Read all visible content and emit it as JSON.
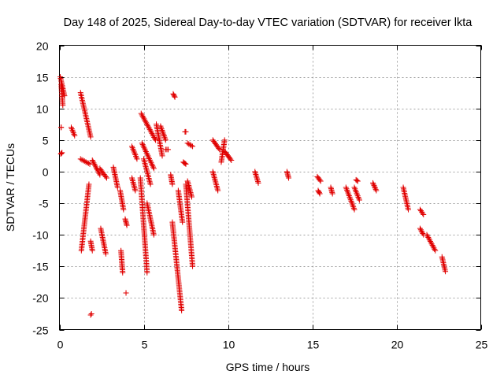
{
  "chart_data": {
    "type": "scatter",
    "title": "Day 148 of 2025, Sidereal Day-to-day VTEC variation (SDTVAR) for receiver lkta",
    "xlabel": "GPS time / hours",
    "ylabel": "SDTVAR / TECUs",
    "xlim": [
      0,
      25
    ],
    "ylim": [
      -25,
      20
    ],
    "xticks": [
      0,
      5,
      10,
      15,
      20,
      25
    ],
    "yticks": [
      -25,
      -20,
      -15,
      -10,
      -5,
      0,
      5,
      10,
      15,
      20
    ],
    "grid": true,
    "marker": "+",
    "color": "#e00000",
    "series": [
      {
        "name": "SDTVAR",
        "segments": [
          {
            "x": [
              0.05,
              0.3
            ],
            "y": [
              15,
              12
            ]
          },
          {
            "x": [
              0.1,
              0.2
            ],
            "y": [
              13.8,
              10.5
            ]
          },
          {
            "x": [
              0.08,
              0.15
            ],
            "y": [
              2.8,
              3.0
            ]
          },
          {
            "x": [
              0.1,
              0.1
            ],
            "y": [
              7,
              7
            ]
          },
          {
            "x": [
              0.7,
              0.9
            ],
            "y": [
              7,
              5.7
            ]
          },
          {
            "x": [
              1.25,
              1.85
            ],
            "y": [
              12.5,
              5.5
            ]
          },
          {
            "x": [
              1.25,
              1.8
            ],
            "y": [
              2,
              1.2
            ]
          },
          {
            "x": [
              1.3,
              1.75
            ],
            "y": [
              -12.5,
              -2
            ]
          },
          {
            "x": [
              1.85,
              1.95
            ],
            "y": [
              -11,
              -12.5
            ]
          },
          {
            "x": [
              1.85,
              1.9
            ],
            "y": [
              -22.7,
              -22.5
            ]
          },
          {
            "x": [
              1.95,
              2.4
            ],
            "y": [
              1.8,
              -0.5
            ]
          },
          {
            "x": [
              2.45,
              2.75
            ],
            "y": [
              -9,
              -13
            ]
          },
          {
            "x": [
              2.4,
              2.8
            ],
            "y": [
              0.5,
              -1
            ]
          },
          {
            "x": [
              3.2,
              3.45
            ],
            "y": [
              0.7,
              -2.5
            ]
          },
          {
            "x": [
              3.6,
              3.8
            ],
            "y": [
              -3,
              -6
            ]
          },
          {
            "x": [
              3.65,
              3.75
            ],
            "y": [
              -12.5,
              -16
            ]
          },
          {
            "x": [
              3.9,
              4.0
            ],
            "y": [
              -7.5,
              -8.5
            ]
          },
          {
            "x": [
              3.95,
              3.95
            ],
            "y": [
              -19.2,
              -19.2
            ]
          },
          {
            "x": [
              4.3,
              4.6
            ],
            "y": [
              4,
              2
            ]
          },
          {
            "x": [
              4.3,
              4.5
            ],
            "y": [
              -1,
              -3
            ]
          },
          {
            "x": [
              4.85,
              5.7
            ],
            "y": [
              9.2,
              5
            ]
          },
          {
            "x": [
              4.9,
              5.6
            ],
            "y": [
              4.5,
              0.5
            ]
          },
          {
            "x": [
              4.8,
              5.2
            ],
            "y": [
              -1,
              -16
            ]
          },
          {
            "x": [
              5.2,
              5.6
            ],
            "y": [
              -5,
              -10
            ]
          },
          {
            "x": [
              5.0,
              5.4
            ],
            "y": [
              2,
              -2
            ]
          },
          {
            "x": [
              5.75,
              6.1
            ],
            "y": [
              7.5,
              2.5
            ]
          },
          {
            "x": [
              6.0,
              6.3
            ],
            "y": [
              7.2,
              5
            ]
          },
          {
            "x": [
              6.3,
              6.45
            ],
            "y": [
              3.5,
              3.5
            ]
          },
          {
            "x": [
              6.6,
              6.7
            ],
            "y": [
              -0.5,
              -2
            ]
          },
          {
            "x": [
              6.75,
              6.85
            ],
            "y": [
              12.3,
              11.8
            ]
          },
          {
            "x": [
              6.7,
              7.25
            ],
            "y": [
              -8,
              -22
            ]
          },
          {
            "x": [
              7.05,
              7.3
            ],
            "y": [
              -3,
              -8
            ]
          },
          {
            "x": [
              7.35,
              7.5
            ],
            "y": [
              1.5,
              1.2
            ]
          },
          {
            "x": [
              7.45,
              7.5
            ],
            "y": [
              6.3,
              6.3
            ]
          },
          {
            "x": [
              7.5,
              7.9
            ],
            "y": [
              -2,
              -15
            ]
          },
          {
            "x": [
              7.6,
              7.9
            ],
            "y": [
              4.5,
              4
            ]
          },
          {
            "x": [
              7.6,
              7.85
            ],
            "y": [
              -1.5,
              -4
            ]
          },
          {
            "x": [
              9.1,
              9.5
            ],
            "y": [
              5,
              3.5
            ]
          },
          {
            "x": [
              9.1,
              9.4
            ],
            "y": [
              0,
              -3
            ]
          },
          {
            "x": [
              9.6,
              9.8
            ],
            "y": [
              1.5,
              5
            ]
          },
          {
            "x": [
              9.8,
              10.2
            ],
            "y": [
              3.2,
              1.8
            ]
          },
          {
            "x": [
              11.6,
              11.8
            ],
            "y": [
              0,
              -1.8
            ]
          },
          {
            "x": [
              13.5,
              13.6
            ],
            "y": [
              0,
              -1
            ]
          },
          {
            "x": [
              15.3,
              15.5
            ],
            "y": [
              -0.8,
              -1.5
            ]
          },
          {
            "x": [
              15.35,
              15.45
            ],
            "y": [
              -3,
              -3.5
            ]
          },
          {
            "x": [
              16.1,
              16.2
            ],
            "y": [
              -2.5,
              -3.5
            ]
          },
          {
            "x": [
              17.0,
              17.5
            ],
            "y": [
              -2.5,
              -6
            ]
          },
          {
            "x": [
              17.5,
              17.8
            ],
            "y": [
              -2.5,
              -4.5
            ]
          },
          {
            "x": [
              17.6,
              17.7
            ],
            "y": [
              -1.3,
              -1.5
            ]
          },
          {
            "x": [
              18.6,
              18.8
            ],
            "y": [
              -1.8,
              -3
            ]
          },
          {
            "x": [
              20.4,
              20.7
            ],
            "y": [
              -2.5,
              -6
            ]
          },
          {
            "x": [
              21.4,
              21.6
            ],
            "y": [
              -6,
              -6.8
            ]
          },
          {
            "x": [
              21.4,
              21.6
            ],
            "y": [
              -9,
              -10
            ]
          },
          {
            "x": [
              21.8,
              22.3
            ],
            "y": [
              -10,
              -12.5
            ]
          },
          {
            "x": [
              22.7,
              22.9
            ],
            "y": [
              -13.5,
              -15.8
            ]
          }
        ]
      }
    ]
  }
}
